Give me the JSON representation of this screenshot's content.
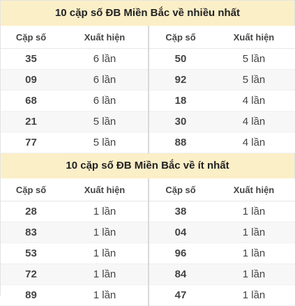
{
  "most_section": {
    "title": "10 cặp số ĐB Miền Bắc về nhiều nhất",
    "headers": [
      "Cặp số",
      "Xuất hiện",
      "Cặp số",
      "Xuất hiện"
    ],
    "rows": [
      {
        "left_pair": "35",
        "left_count": "6 lần",
        "right_pair": "50",
        "right_count": "5 lần"
      },
      {
        "left_pair": "09",
        "left_count": "6 lần",
        "right_pair": "92",
        "right_count": "5 lần"
      },
      {
        "left_pair": "68",
        "left_count": "6 lần",
        "right_pair": "18",
        "right_count": "4 lần"
      },
      {
        "left_pair": "21",
        "left_count": "5 lần",
        "right_pair": "30",
        "right_count": "4 lần"
      },
      {
        "left_pair": "77",
        "left_count": "5 lần",
        "right_pair": "88",
        "right_count": "4 lần"
      }
    ]
  },
  "least_section": {
    "title": "10 cặp số ĐB Miền Bắc về ít nhất",
    "headers": [
      "Cặp số",
      "Xuất hiện",
      "Cặp số",
      "Xuất hiện"
    ],
    "rows": [
      {
        "left_pair": "28",
        "left_count": "1 lần",
        "right_pair": "38",
        "right_count": "1 lần"
      },
      {
        "left_pair": "83",
        "left_count": "1 lần",
        "right_pair": "04",
        "right_count": "1 lần"
      },
      {
        "left_pair": "53",
        "left_count": "1 lần",
        "right_pair": "96",
        "right_count": "1 lần"
      },
      {
        "left_pair": "72",
        "left_count": "1 lần",
        "right_pair": "84",
        "right_count": "1 lần"
      },
      {
        "left_pair": "89",
        "left_count": "1 lần",
        "right_pair": "47",
        "right_count": "1 lần"
      }
    ]
  },
  "colors": {
    "title_background": "#fbefc8",
    "pair_number": "#d2691e",
    "alt_row": "#f7f7f7"
  }
}
